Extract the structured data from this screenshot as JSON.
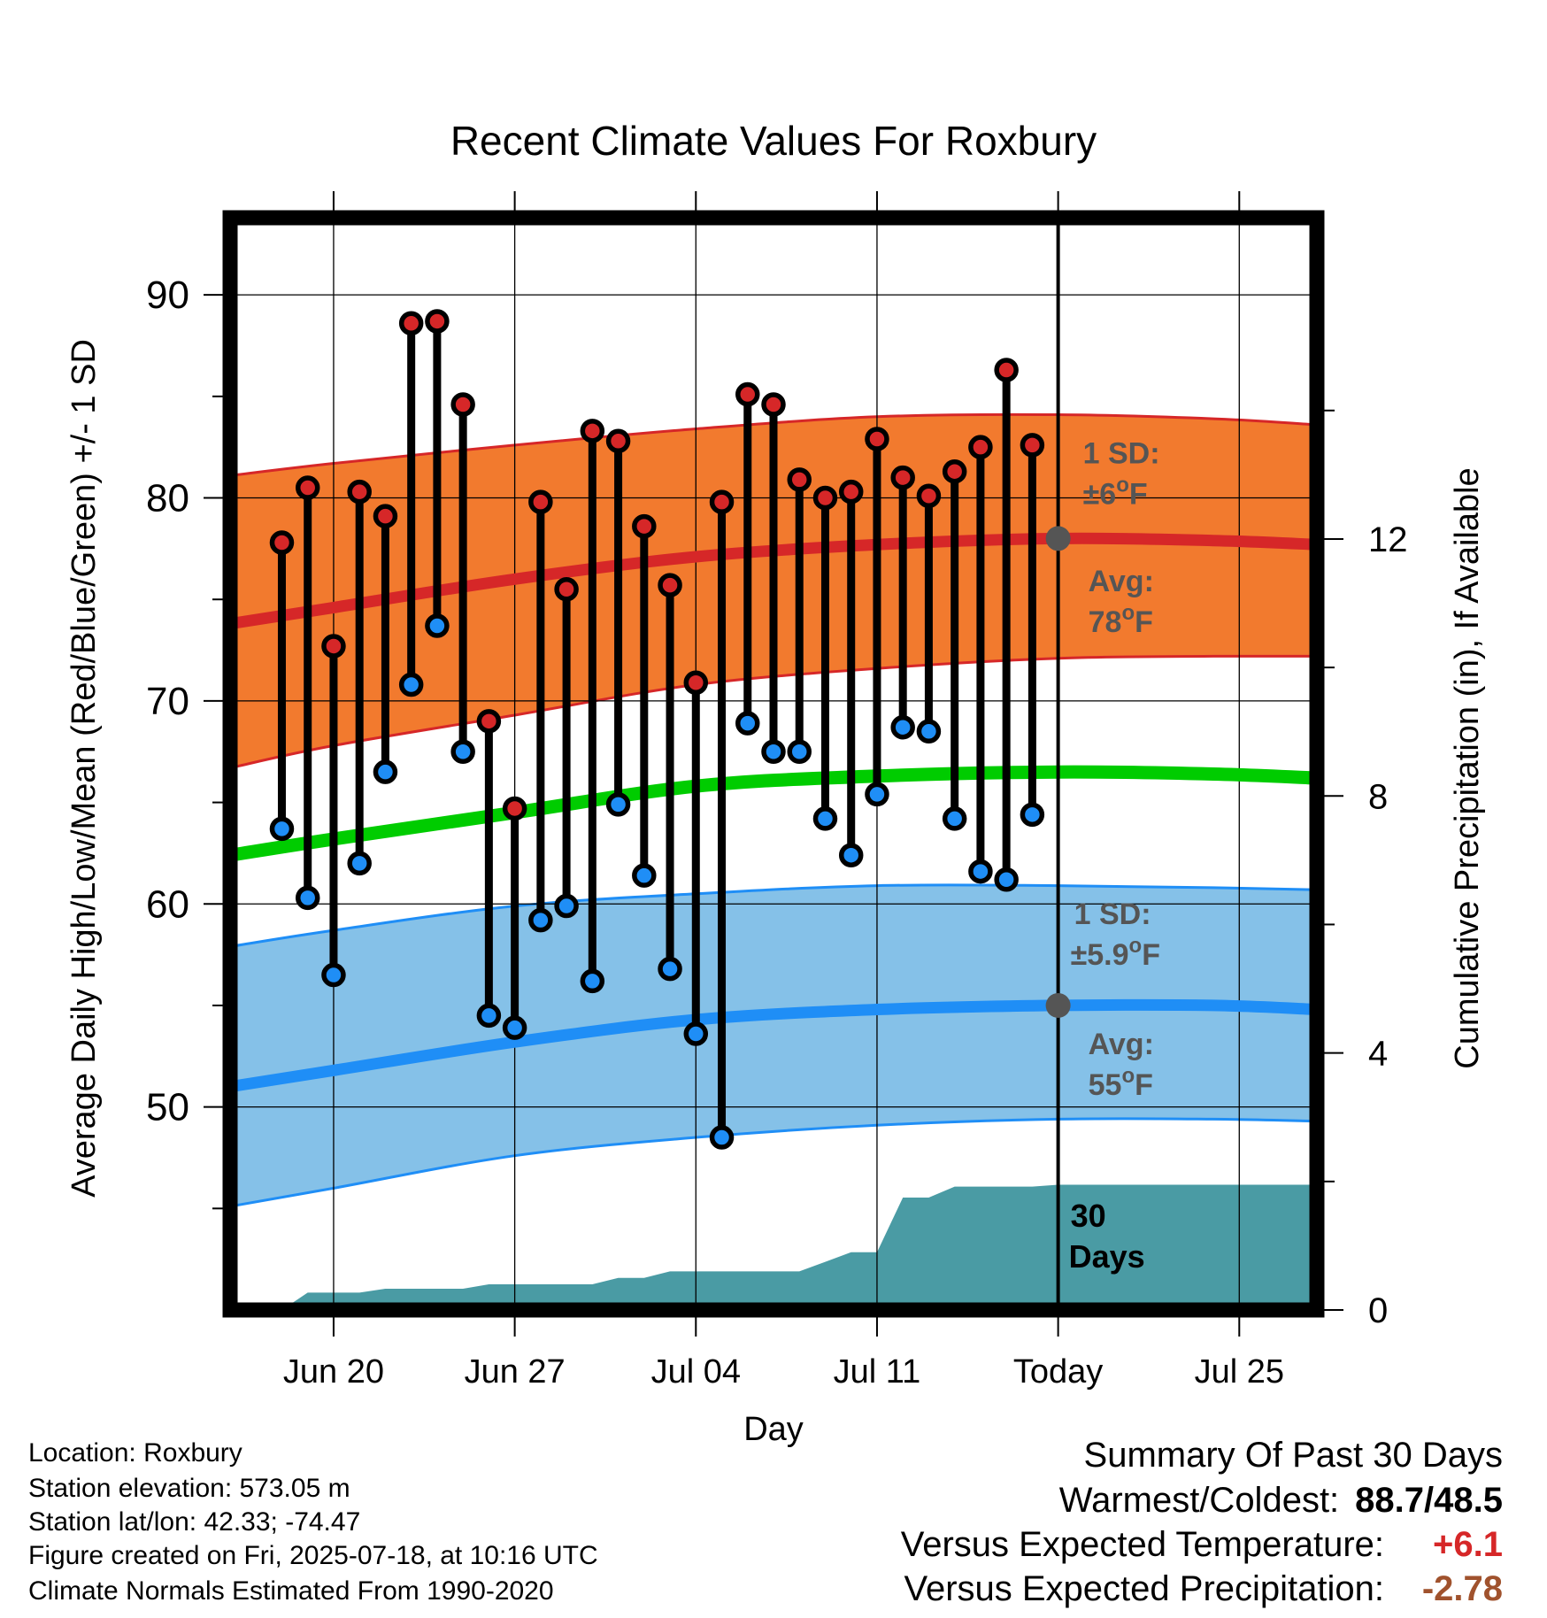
{
  "chart_data": {
    "type": "line",
    "title": "Recent Climate Values For Roxbury",
    "xlabel": "Day",
    "ylabel": "Average Daily High/Low/Mean (Red/Blue/Green) +/- 1 SD",
    "y2label": "Cumulative Precipitation (in), If Available",
    "ylim": [
      40,
      93.8
    ],
    "y2lim": [
      0,
      17
    ],
    "xlim_days": [
      "2025-06-16",
      "2025-07-28"
    ],
    "x_ticks": [
      {
        "date": "2025-06-20",
        "label": "Jun 20"
      },
      {
        "date": "2025-06-27",
        "label": "Jun 27"
      },
      {
        "date": "2025-07-04",
        "label": "Jul 04"
      },
      {
        "date": "2025-07-11",
        "label": "Jul 11"
      },
      {
        "date": "2025-07-18",
        "label": "Today"
      },
      {
        "date": "2025-07-25",
        "label": "Jul 25"
      }
    ],
    "y_ticks": [
      50,
      60,
      70,
      80,
      90
    ],
    "y2_ticks": [
      0,
      4,
      8,
      12
    ],
    "grid": true,
    "today": "2025-07-18",
    "colors": {
      "high_line": "#d62728",
      "high_band": "#f27a2e",
      "low_line": "#1f8ef6",
      "low_band": "#85c1e8",
      "mean_line": "#00cc00",
      "precip": "#4a9ba4",
      "high_dot": "#d62728",
      "low_dot": "#1f8ef6"
    },
    "normals": {
      "dates": [
        "2025-06-16",
        "2025-06-20",
        "2025-06-27",
        "2025-07-04",
        "2025-07-11",
        "2025-07-18",
        "2025-07-24",
        "2025-07-28"
      ],
      "high_mean": [
        73.8,
        74.6,
        76.0,
        77.1,
        77.7,
        78.0,
        77.9,
        77.7
      ],
      "high_upper": [
        81.1,
        81.7,
        82.6,
        83.4,
        84.0,
        84.1,
        83.9,
        83.6
      ],
      "high_lower": [
        66.7,
        67.8,
        69.3,
        70.8,
        71.6,
        72.1,
        72.2,
        72.2
      ],
      "avg_mean": [
        62.4,
        63.2,
        64.5,
        65.8,
        66.3,
        66.5,
        66.4,
        66.2
      ],
      "low_mean": [
        51.0,
        51.8,
        53.2,
        54.3,
        54.8,
        55.0,
        55.0,
        54.8
      ],
      "low_upper": [
        57.9,
        58.7,
        59.9,
        60.5,
        60.9,
        60.9,
        60.8,
        60.7
      ],
      "low_lower": [
        45.1,
        46.0,
        47.6,
        48.5,
        49.1,
        49.4,
        49.4,
        49.3
      ]
    },
    "observed": {
      "dates": [
        "2025-06-18",
        "2025-06-19",
        "2025-06-20",
        "2025-06-21",
        "2025-06-22",
        "2025-06-23",
        "2025-06-24",
        "2025-06-25",
        "2025-06-26",
        "2025-06-27",
        "2025-06-28",
        "2025-06-29",
        "2025-06-30",
        "2025-07-01",
        "2025-07-02",
        "2025-07-03",
        "2025-07-04",
        "2025-07-05",
        "2025-07-06",
        "2025-07-07",
        "2025-07-08",
        "2025-07-09",
        "2025-07-10",
        "2025-07-11",
        "2025-07-12",
        "2025-07-13",
        "2025-07-14",
        "2025-07-15",
        "2025-07-16",
        "2025-07-17"
      ],
      "high": [
        77.8,
        80.5,
        72.7,
        80.3,
        79.1,
        88.6,
        88.7,
        84.6,
        69.0,
        64.7,
        79.8,
        75.5,
        83.3,
        82.8,
        78.6,
        75.7,
        70.9,
        79.8,
        85.1,
        84.6,
        80.9,
        80.0,
        80.3,
        82.9,
        81.0,
        80.1,
        81.3,
        82.5,
        86.3,
        82.6
      ],
      "low": [
        63.7,
        60.3,
        56.5,
        62.0,
        66.5,
        70.8,
        73.7,
        67.5,
        54.5,
        53.9,
        59.2,
        59.9,
        56.2,
        64.9,
        61.4,
        56.8,
        53.6,
        48.5,
        68.9,
        67.5,
        67.5,
        64.2,
        62.4,
        65.4,
        68.7,
        68.5,
        64.2,
        61.6,
        61.2,
        64.4
      ]
    },
    "precip": {
      "dates": [
        "2025-06-16",
        "2025-06-17",
        "2025-06-18",
        "2025-06-19",
        "2025-06-20",
        "2025-06-21",
        "2025-06-22",
        "2025-06-23",
        "2025-06-24",
        "2025-06-25",
        "2025-06-26",
        "2025-06-27",
        "2025-06-28",
        "2025-06-29",
        "2025-06-30",
        "2025-07-01",
        "2025-07-02",
        "2025-07-03",
        "2025-07-04",
        "2025-07-05",
        "2025-07-06",
        "2025-07-07",
        "2025-07-08",
        "2025-07-09",
        "2025-07-10",
        "2025-07-11",
        "2025-07-12",
        "2025-07-13",
        "2025-07-14",
        "2025-07-15",
        "2025-07-16",
        "2025-07-17",
        "2025-07-18",
        "2025-07-28"
      ],
      "cumulative": [
        0.0,
        0.0,
        0.0,
        0.27,
        0.27,
        0.27,
        0.33,
        0.33,
        0.33,
        0.33,
        0.4,
        0.4,
        0.4,
        0.4,
        0.4,
        0.5,
        0.5,
        0.6,
        0.6,
        0.6,
        0.6,
        0.6,
        0.6,
        0.75,
        0.9,
        0.9,
        1.75,
        1.75,
        1.92,
        1.92,
        1.92,
        1.92,
        1.95,
        1.95
      ]
    },
    "annotations": {
      "high_sd_label": "1 SD:",
      "high_sd_value": "±6°F",
      "high_avg_label": "Avg:",
      "high_avg_value": "78°F",
      "high_avg_point": 78.0,
      "low_sd_label": "1 SD:",
      "low_sd_value": "±5.9°F",
      "low_avg_label": "Avg:",
      "low_avg_value": "55°F",
      "low_avg_point": 55.0,
      "precip_label_line1": "30",
      "precip_label_line2": "Days"
    }
  },
  "info": {
    "location": "Location: Roxbury",
    "elevation": "Station elevation: 573.05 m",
    "latlon": "Station lat/lon: 42.33; -74.47",
    "created": "Figure created on Fri, 2025-07-18, at 10:16 UTC",
    "normals": "Climate Normals Estimated From 1990-2020"
  },
  "summary": {
    "title": "Summary Of Past 30 Days",
    "warmest_label": "Warmest/Coldest:",
    "warmest_value": "88.7/48.5",
    "temp_label": "Versus Expected Temperature:",
    "temp_value": "+6.1",
    "temp_color": "#d62728",
    "precip_label": "Versus Expected Precipitation:",
    "precip_value": "-2.78",
    "precip_color": "#a0522d"
  }
}
